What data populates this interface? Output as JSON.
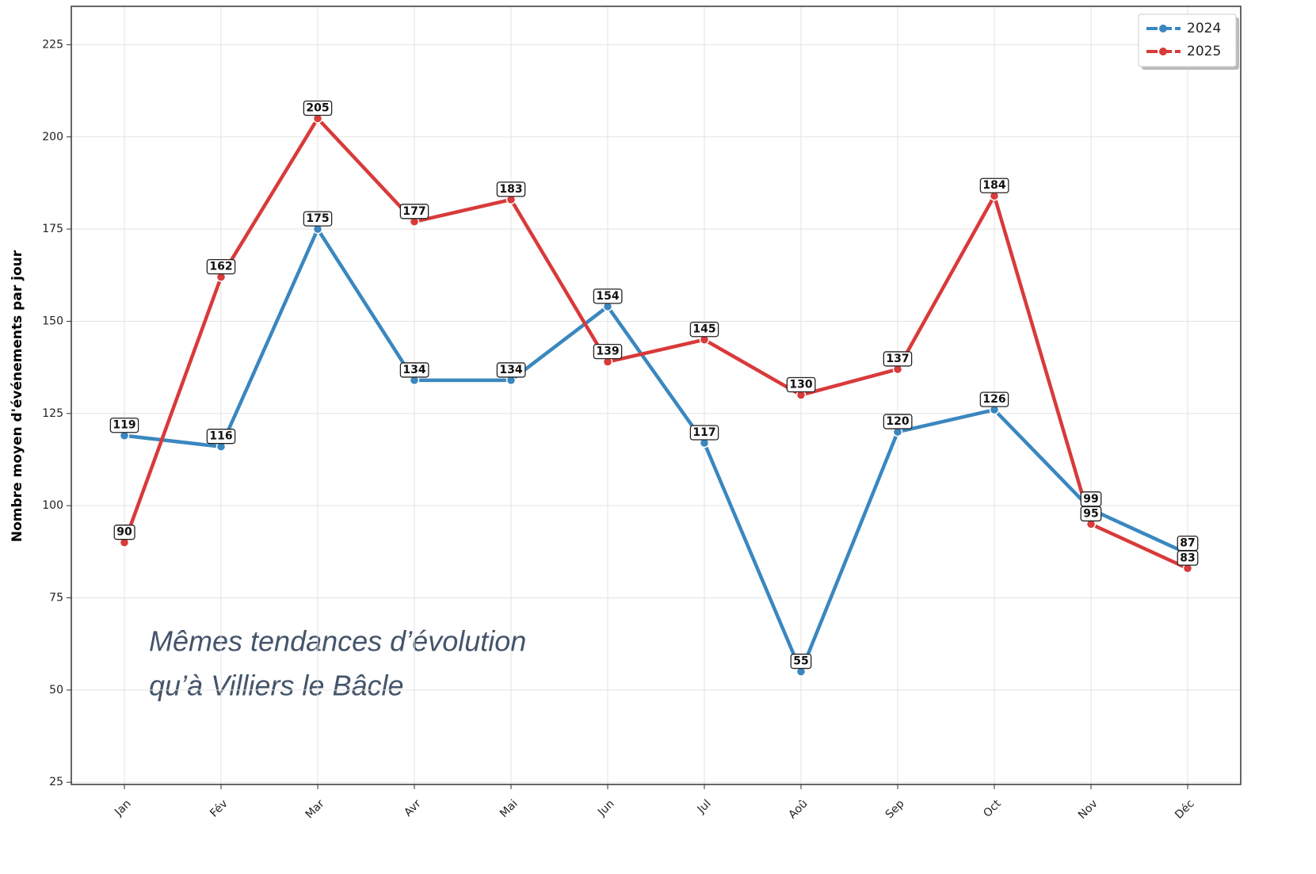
{
  "chart_data": {
    "type": "line",
    "y_label": "Nombre moyen d'événements par jour",
    "annotation": [
      "Mêmes tendances d’évolution",
      "qu’à Villiers le Bâcle"
    ],
    "categories": [
      "Jan",
      "Fév",
      "Mar",
      "Avr",
      "Mai",
      "Jun",
      "Jul",
      "Aoû",
      "Sep",
      "Oct",
      "Nov",
      "Déc"
    ],
    "series": [
      {
        "name": "2024",
        "color": "#3a87c0",
        "values": [
          119,
          116,
          175,
          134,
          134,
          154,
          117,
          55,
          120,
          126,
          99,
          87
        ]
      },
      {
        "name": "2025",
        "color": "#d93a3a",
        "values": [
          90,
          162,
          205,
          177,
          183,
          139,
          145,
          130,
          137,
          184,
          95,
          83
        ]
      }
    ],
    "ylim": [
      24.4,
      235.4
    ],
    "yticks": [
      25,
      50,
      75,
      100,
      125,
      150,
      175,
      200,
      225
    ],
    "grid": true,
    "legend": "upper right"
  }
}
